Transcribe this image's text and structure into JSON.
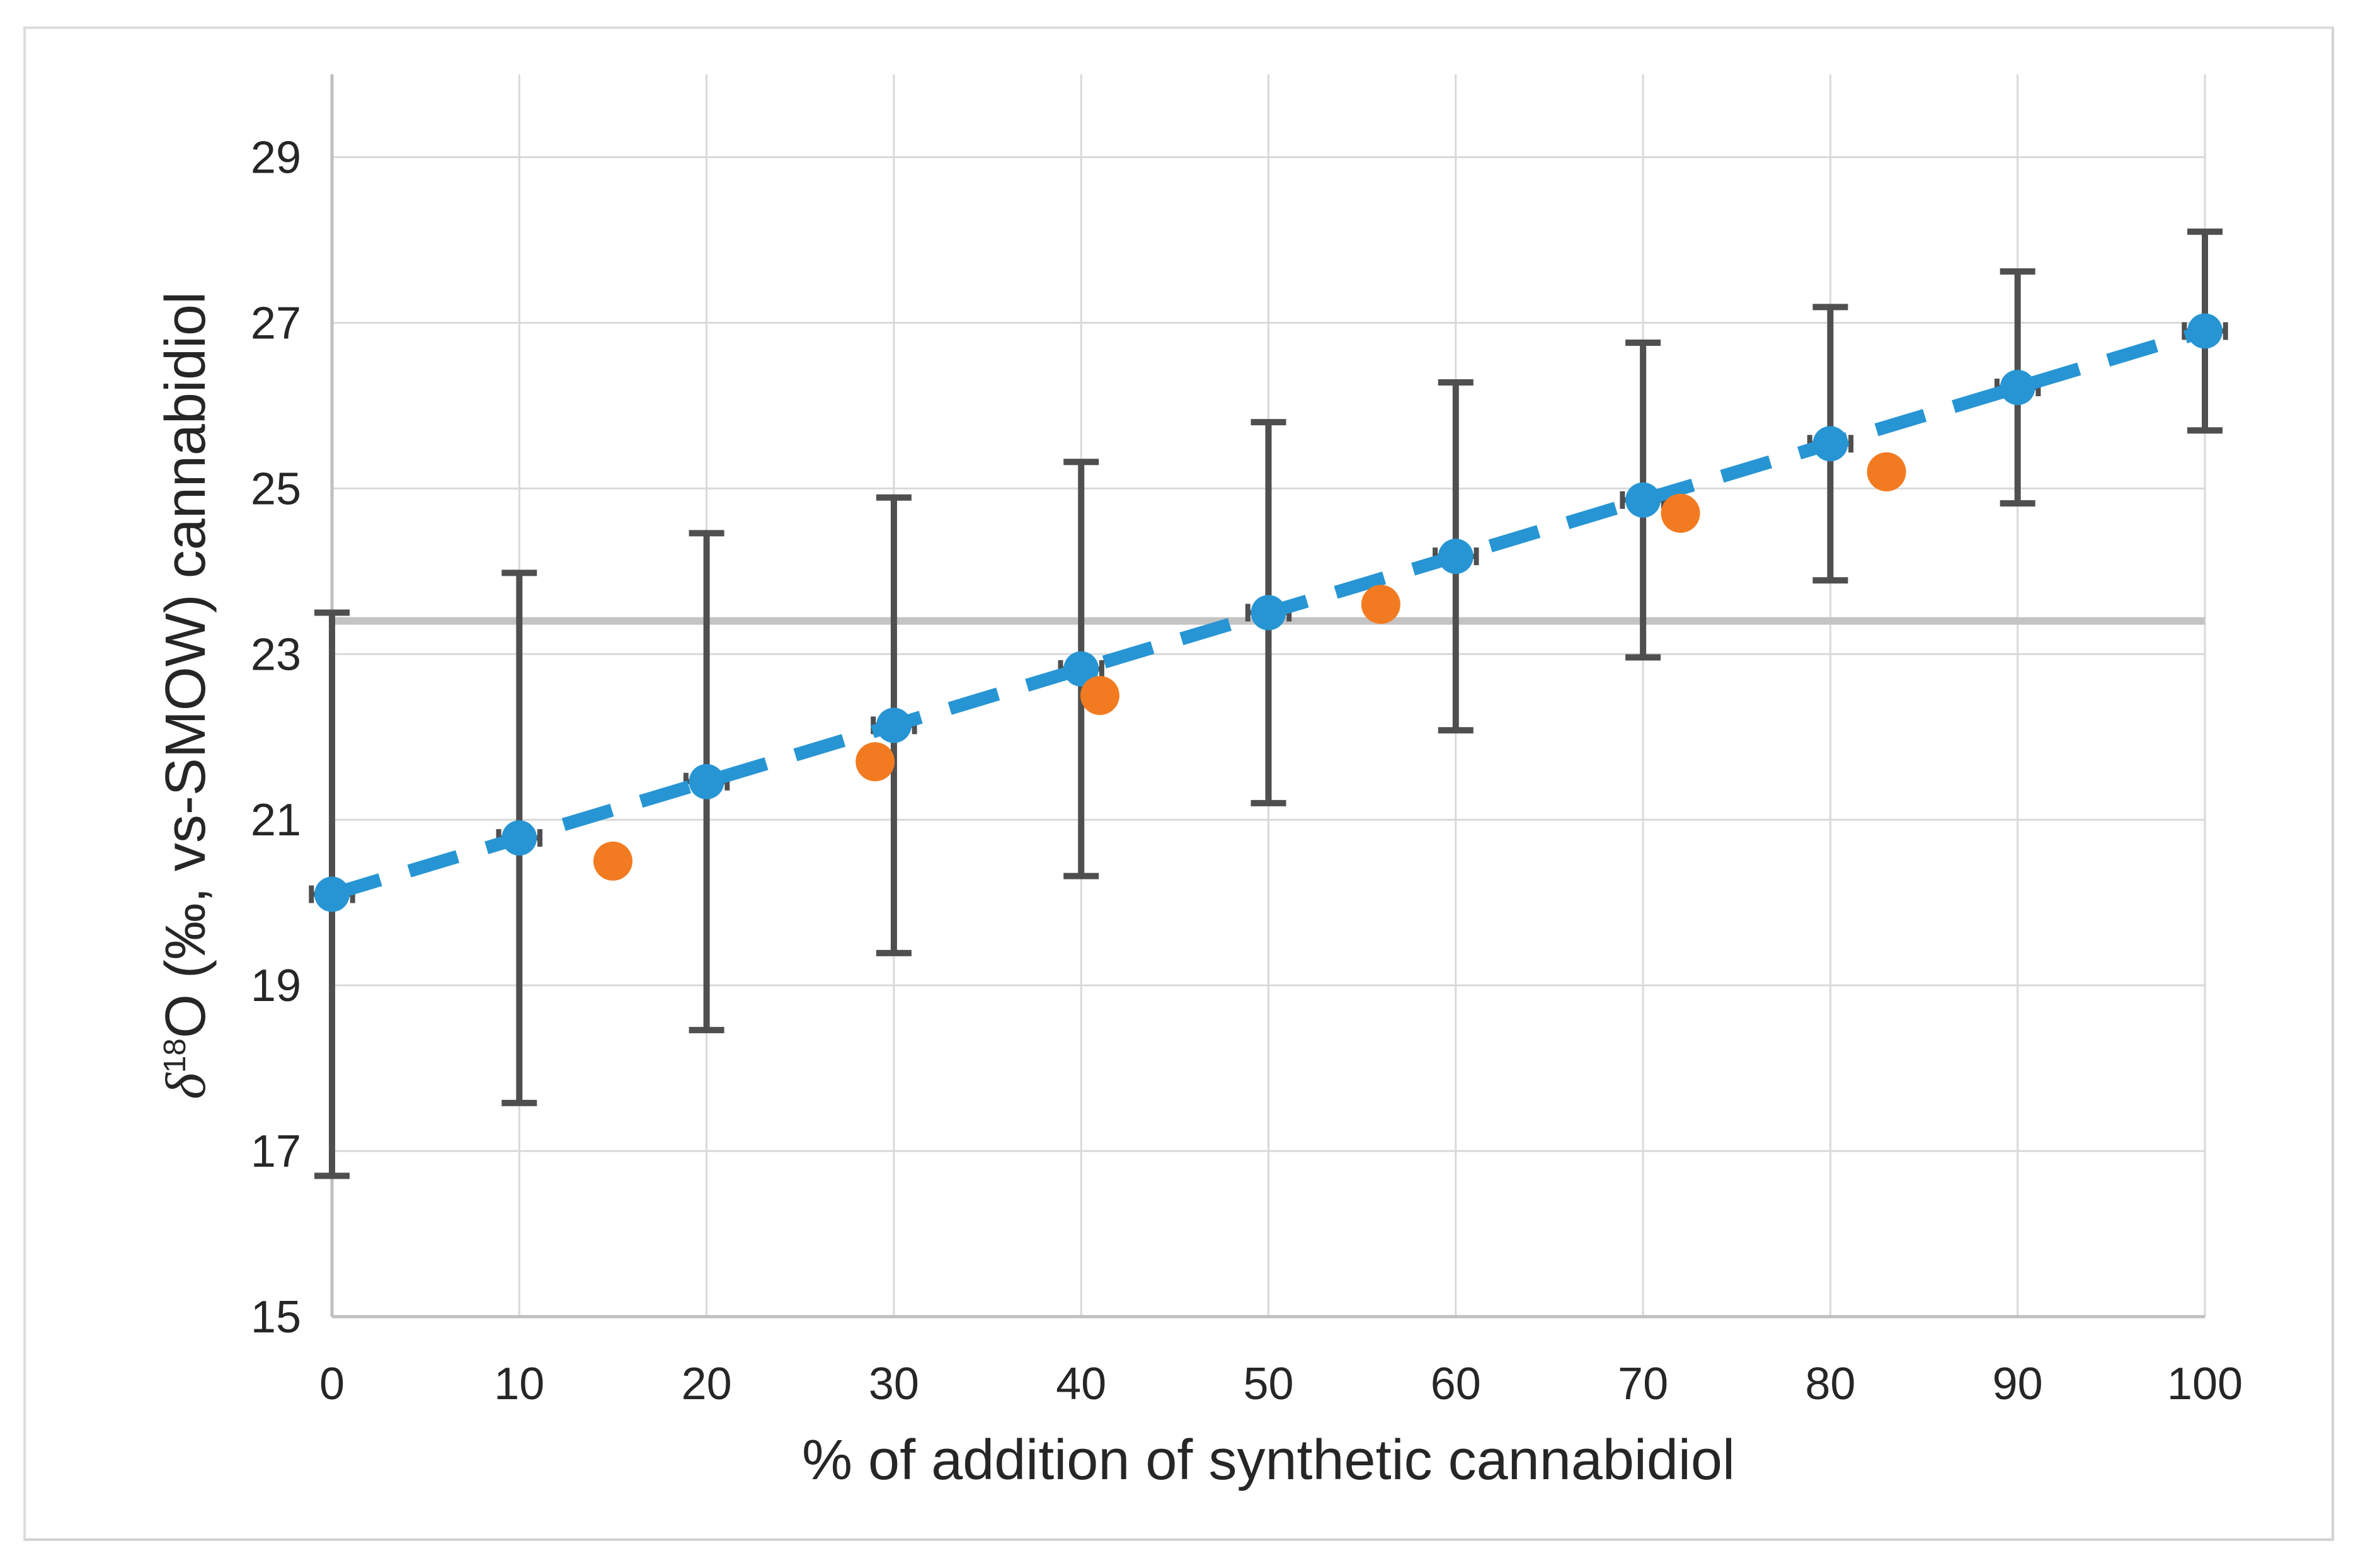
{
  "figure": {
    "background": "#FFFFFF",
    "border_color": "#DCDCDC"
  },
  "axes": {
    "x": {
      "title": "% of addition of synthetic cannabidiol",
      "min": 0,
      "max": 100,
      "tick_labels": [
        "0",
        "10",
        "20",
        "30",
        "40",
        "50",
        "60",
        "70",
        "80",
        "90",
        "100"
      ]
    },
    "y": {
      "title_delta": "δ",
      "title_superscript": "18",
      "title_rest": "O (‰, vs-SMOW) cannabidiol",
      "min": 15,
      "max": 30,
      "tick_labels": [
        "15",
        "17",
        "19",
        "21",
        "23",
        "25",
        "27",
        "29"
      ]
    }
  },
  "chart_data": {
    "type": "scatter",
    "title": "",
    "xlabel": "% of addition of synthetic cannabidiol",
    "ylabel": "δ18O (‰, vs-SMOW) cannabidiol",
    "xlim": [
      0,
      100
    ],
    "ylim": [
      15,
      30
    ],
    "x_ticks": [
      0,
      10,
      20,
      30,
      40,
      50,
      60,
      70,
      80,
      90,
      100
    ],
    "y_ticks": [
      15,
      17,
      19,
      21,
      23,
      25,
      27,
      29
    ],
    "grid": true,
    "legend": "none",
    "series": [
      {
        "id": "blue-mixture-series",
        "marker": "circle",
        "marker_radius": 28,
        "color": "#2795D3",
        "x": [
          0,
          10,
          20,
          30,
          40,
          50,
          60,
          70,
          80,
          90,
          100
        ],
        "y": [
          20.1,
          20.78,
          21.46,
          22.14,
          22.82,
          23.5,
          24.18,
          24.86,
          25.54,
          26.22,
          26.9
        ],
        "yerr": [
          3.4,
          3.2,
          3.0,
          2.75,
          2.5,
          2.3,
          2.1,
          1.9,
          1.65,
          1.4,
          1.2
        ],
        "xerr": 1.1,
        "error_bar_color": "#4F4F4F",
        "trendline": {
          "style": "dashed",
          "color": "#2795D3",
          "x": [
            0,
            100
          ],
          "y": [
            20.1,
            26.9
          ]
        }
      },
      {
        "id": "orange-series",
        "marker": "circle",
        "marker_radius": 31,
        "color": "#F27B21",
        "x": [
          15,
          29,
          41,
          56,
          72,
          83
        ],
        "y": [
          20.5,
          21.7,
          22.5,
          23.6,
          24.7,
          25.2
        ]
      }
    ],
    "reference_line": {
      "y": 23.4,
      "color": "#C4C4C4"
    },
    "colors": {
      "gridline": "#D9D9D9",
      "axis_line": "#BFBFBF",
      "tick_label": "#262626",
      "axis_title": "#262626"
    }
  }
}
